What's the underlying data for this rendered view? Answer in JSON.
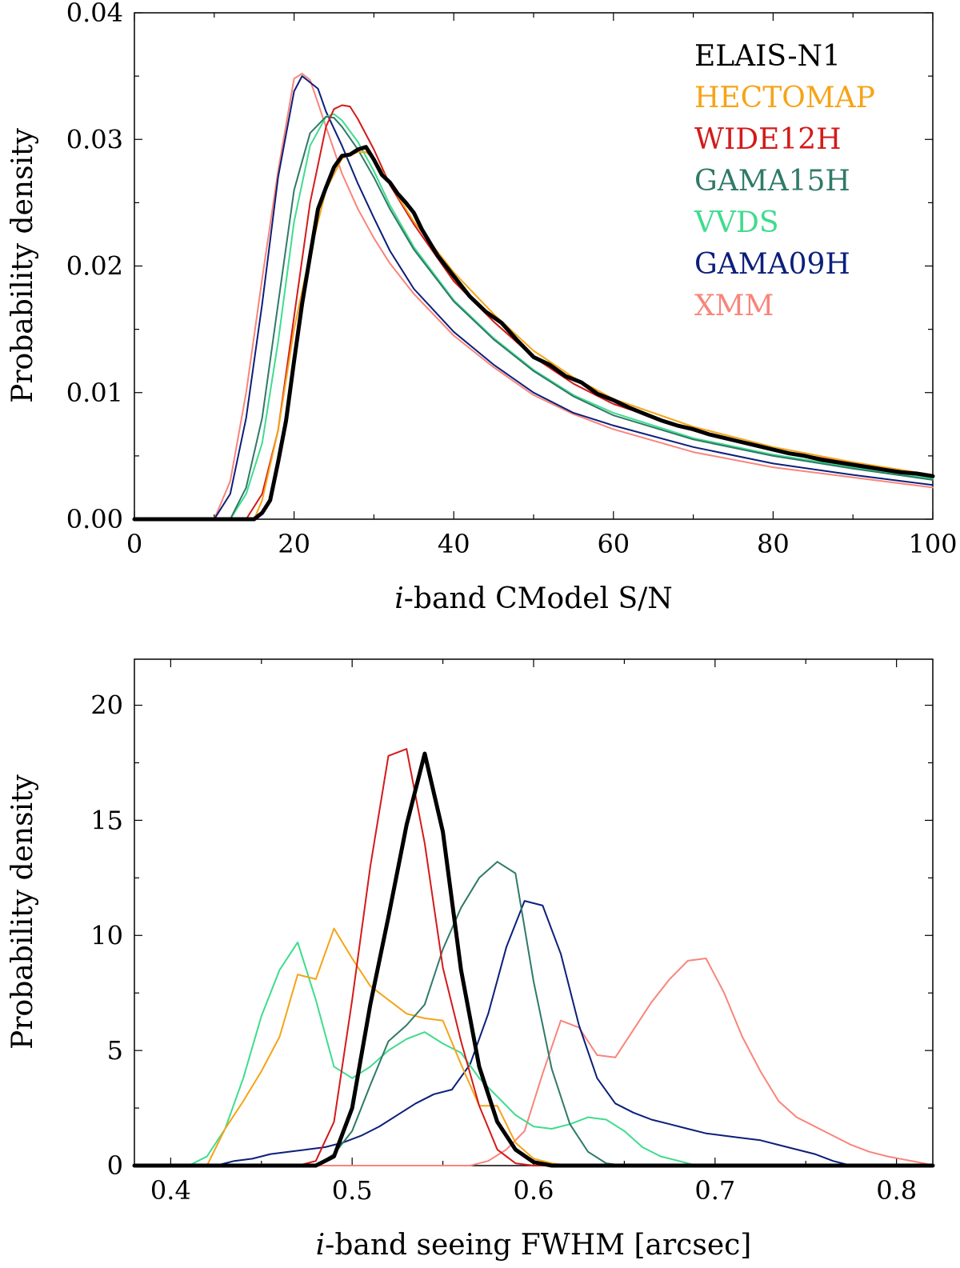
{
  "chart_data": [
    {
      "type": "line",
      "id": "top",
      "xlabel_prefix": "i",
      "xlabel_rest": "-band CModel S/N",
      "ylabel": "Probability density",
      "xlim": [
        0,
        100
      ],
      "ylim": [
        0,
        0.04
      ],
      "xticks": [
        0,
        20,
        40,
        60,
        80,
        100
      ],
      "xtick_labels": [
        "0",
        "20",
        "40",
        "60",
        "80",
        "100"
      ],
      "yticks": [
        0,
        0.01,
        0.02,
        0.03,
        0.04
      ],
      "ytick_labels": [
        "0.00",
        "0.01",
        "0.02",
        "0.03",
        "0.04"
      ],
      "legend": [
        {
          "name": "ELAIS-N1",
          "color": "#000000"
        },
        {
          "name": "HECTOMAP",
          "color": "#f5a418"
        },
        {
          "name": "WIDE12H",
          "color": "#d41a1a"
        },
        {
          "name": "GAMA15H",
          "color": "#2f7a68"
        },
        {
          "name": "VVDS",
          "color": "#3fdc8e"
        },
        {
          "name": "GAMA09H",
          "color": "#0c1f7a"
        },
        {
          "name": "XMM",
          "color": "#f8857b"
        }
      ],
      "series": [
        {
          "name": "XMM",
          "color": "#f8857b",
          "width": 2,
          "x": [
            0,
            10,
            12,
            14,
            16,
            18,
            20,
            21,
            22,
            24,
            26,
            28,
            30,
            32,
            35,
            40,
            45,
            50,
            55,
            60,
            70,
            80,
            90,
            100
          ],
          "y": [
            0,
            0,
            0.003,
            0.01,
            0.019,
            0.0275,
            0.0348,
            0.0352,
            0.0347,
            0.031,
            0.0273,
            0.0245,
            0.0222,
            0.0202,
            0.0178,
            0.0145,
            0.012,
            0.0098,
            0.0083,
            0.0071,
            0.0053,
            0.0041,
            0.0033,
            0.0025
          ]
        },
        {
          "name": "GAMA09H",
          "color": "#0c1f7a",
          "width": 2,
          "x": [
            0,
            10,
            12,
            14,
            16,
            18,
            20,
            21,
            22,
            23,
            24,
            26,
            28,
            30,
            32,
            35,
            40,
            45,
            50,
            55,
            60,
            70,
            80,
            90,
            100
          ],
          "y": [
            0,
            0,
            0.002,
            0.008,
            0.017,
            0.027,
            0.0338,
            0.035,
            0.0345,
            0.034,
            0.0322,
            0.0295,
            0.0265,
            0.0238,
            0.0212,
            0.0182,
            0.0148,
            0.0122,
            0.01,
            0.0084,
            0.0074,
            0.0057,
            0.0044,
            0.0035,
            0.0027
          ]
        },
        {
          "name": "VVDS",
          "color": "#3fdc8e",
          "width": 2,
          "x": [
            0,
            12,
            14,
            16,
            18,
            20,
            22,
            24,
            25,
            26,
            28,
            30,
            32,
            35,
            40,
            45,
            50,
            55,
            60,
            70,
            80,
            90,
            100
          ],
          "y": [
            0,
            0,
            0.002,
            0.006,
            0.014,
            0.0235,
            0.0295,
            0.0318,
            0.032,
            0.0315,
            0.0298,
            0.0275,
            0.0248,
            0.0215,
            0.0173,
            0.0143,
            0.0118,
            0.0098,
            0.0084,
            0.0064,
            0.0051,
            0.0041,
            0.0032
          ]
        },
        {
          "name": "GAMA15H",
          "color": "#2f7a68",
          "width": 2,
          "x": [
            0,
            12,
            14,
            16,
            18,
            20,
            22,
            24,
            25,
            26,
            28,
            30,
            32,
            35,
            40,
            45,
            50,
            55,
            60,
            70,
            80,
            90,
            100
          ],
          "y": [
            0,
            0,
            0.0025,
            0.008,
            0.017,
            0.026,
            0.0305,
            0.0318,
            0.0317,
            0.031,
            0.0292,
            0.027,
            0.0245,
            0.0213,
            0.0172,
            0.0142,
            0.0117,
            0.0097,
            0.0082,
            0.0063,
            0.005,
            0.004,
            0.0031
          ]
        },
        {
          "name": "WIDE12H",
          "color": "#d41a1a",
          "width": 2,
          "x": [
            0,
            14,
            16,
            18,
            20,
            22,
            24,
            25,
            26,
            27,
            28,
            30,
            32,
            35,
            40,
            45,
            50,
            55,
            60,
            70,
            80,
            90,
            100
          ],
          "y": [
            0,
            0,
            0.002,
            0.007,
            0.016,
            0.025,
            0.031,
            0.0324,
            0.0327,
            0.0326,
            0.0316,
            0.0292,
            0.0264,
            0.0233,
            0.0188,
            0.0156,
            0.0128,
            0.0107,
            0.0091,
            0.007,
            0.0055,
            0.0044,
            0.0034
          ]
        },
        {
          "name": "HECTOMAP",
          "color": "#f5a418",
          "width": 2,
          "x": [
            0,
            15,
            16,
            18,
            20,
            22,
            24,
            26,
            28,
            29,
            30,
            32,
            35,
            40,
            45,
            50,
            55,
            60,
            70,
            80,
            90,
            100
          ],
          "y": [
            0,
            0,
            0.0015,
            0.007,
            0.015,
            0.021,
            0.026,
            0.0285,
            0.029,
            0.029,
            0.0285,
            0.0265,
            0.0235,
            0.0195,
            0.0162,
            0.0133,
            0.0112,
            0.0095,
            0.0073,
            0.0057,
            0.0045,
            0.0035
          ]
        },
        {
          "name": "ELAIS-N1",
          "color": "#000000",
          "width": 5,
          "x": [
            0,
            15,
            16,
            17,
            18,
            19,
            20,
            21,
            22,
            23,
            24,
            25,
            26,
            27,
            28,
            29,
            30,
            31,
            32,
            33,
            34,
            35,
            36,
            38,
            40,
            42,
            44,
            46,
            48,
            50,
            52,
            54,
            56,
            58,
            60,
            62,
            64,
            66,
            68,
            70,
            72,
            74,
            76,
            78,
            80,
            82,
            84,
            86,
            88,
            90,
            92,
            94,
            96,
            98,
            100
          ],
          "y": [
            0,
            0,
            0.0005,
            0.0015,
            0.0045,
            0.0078,
            0.0125,
            0.017,
            0.0208,
            0.0245,
            0.0262,
            0.0278,
            0.0287,
            0.0288,
            0.0292,
            0.0294,
            0.0284,
            0.0272,
            0.0266,
            0.0257,
            0.025,
            0.0242,
            0.0229,
            0.0208,
            0.0192,
            0.0176,
            0.0164,
            0.0155,
            0.0141,
            0.0128,
            0.0122,
            0.0113,
            0.0108,
            0.0099,
            0.0094,
            0.0088,
            0.0083,
            0.0078,
            0.0074,
            0.0071,
            0.0067,
            0.0064,
            0.0061,
            0.0058,
            0.0055,
            0.0052,
            0.005,
            0.0047,
            0.0045,
            0.0043,
            0.0041,
            0.0039,
            0.0037,
            0.0036,
            0.0034
          ]
        }
      ]
    },
    {
      "type": "line",
      "id": "bottom",
      "xlabel_prefix": "i",
      "xlabel_rest": "-band seeing FWHM [arcsec]",
      "ylabel": "Probability density",
      "xlim": [
        0.38,
        0.82
      ],
      "ylim": [
        0,
        22
      ],
      "xticks": [
        0.4,
        0.5,
        0.6,
        0.7,
        0.8
      ],
      "xtick_labels": [
        "0.4",
        "0.5",
        "0.6",
        "0.7",
        "0.8"
      ],
      "yticks": [
        0,
        5,
        10,
        15,
        20
      ],
      "ytick_labels": [
        "0",
        "5",
        "10",
        "15",
        "20"
      ],
      "series": [
        {
          "name": "XMM",
          "color": "#f8857b",
          "width": 2,
          "x": [
            0.38,
            0.55,
            0.565,
            0.575,
            0.585,
            0.595,
            0.605,
            0.615,
            0.625,
            0.635,
            0.645,
            0.655,
            0.665,
            0.675,
            0.685,
            0.695,
            0.705,
            0.715,
            0.725,
            0.735,
            0.745,
            0.755,
            0.765,
            0.775,
            0.785,
            0.795,
            0.805,
            0.815,
            0.82
          ],
          "y": [
            0,
            0,
            0,
            0.2,
            0.7,
            1.5,
            4.0,
            6.3,
            6.0,
            4.8,
            4.7,
            5.9,
            7.1,
            8.1,
            8.9,
            9.0,
            7.5,
            5.6,
            4.1,
            2.8,
            2.1,
            1.7,
            1.3,
            0.9,
            0.6,
            0.4,
            0.25,
            0.1,
            0
          ]
        },
        {
          "name": "GAMA09H",
          "color": "#0c1f7a",
          "width": 2,
          "x": [
            0.38,
            0.425,
            0.435,
            0.445,
            0.455,
            0.465,
            0.475,
            0.485,
            0.495,
            0.505,
            0.515,
            0.525,
            0.535,
            0.545,
            0.555,
            0.565,
            0.575,
            0.585,
            0.595,
            0.605,
            0.615,
            0.625,
            0.635,
            0.645,
            0.655,
            0.665,
            0.675,
            0.685,
            0.695,
            0.705,
            0.715,
            0.725,
            0.735,
            0.745,
            0.755,
            0.765,
            0.775,
            0.82
          ],
          "y": [
            0,
            0,
            0.2,
            0.3,
            0.5,
            0.6,
            0.7,
            0.8,
            1.0,
            1.3,
            1.7,
            2.2,
            2.7,
            3.1,
            3.3,
            4.4,
            6.6,
            9.5,
            11.5,
            11.3,
            9.2,
            6.1,
            3.8,
            2.7,
            2.3,
            2.0,
            1.8,
            1.6,
            1.4,
            1.3,
            1.2,
            1.1,
            0.9,
            0.7,
            0.5,
            0.2,
            0,
            0
          ]
        },
        {
          "name": "VVDS",
          "color": "#3fdc8e",
          "width": 2,
          "x": [
            0.38,
            0.41,
            0.42,
            0.43,
            0.44,
            0.45,
            0.46,
            0.47,
            0.48,
            0.49,
            0.5,
            0.51,
            0.52,
            0.53,
            0.54,
            0.55,
            0.56,
            0.57,
            0.58,
            0.59,
            0.6,
            0.61,
            0.62,
            0.63,
            0.64,
            0.65,
            0.66,
            0.67,
            0.68,
            0.69,
            0.7,
            0.82
          ],
          "y": [
            0,
            0,
            0.4,
            1.6,
            3.8,
            6.5,
            8.5,
            9.7,
            7.2,
            4.3,
            3.8,
            4.3,
            5.0,
            5.5,
            5.8,
            5.3,
            4.9,
            3.8,
            3.0,
            2.2,
            1.7,
            1.6,
            1.8,
            2.1,
            2.0,
            1.5,
            0.8,
            0.4,
            0.2,
            0,
            0,
            0
          ]
        },
        {
          "name": "HECTOMAP",
          "color": "#f5a418",
          "width": 2,
          "x": [
            0.38,
            0.42,
            0.43,
            0.44,
            0.45,
            0.46,
            0.47,
            0.48,
            0.49,
            0.5,
            0.51,
            0.52,
            0.53,
            0.54,
            0.55,
            0.56,
            0.57,
            0.58,
            0.59,
            0.6,
            0.61,
            0.62,
            0.82
          ],
          "y": [
            0,
            0,
            1.6,
            2.8,
            4.1,
            5.6,
            8.3,
            8.1,
            10.3,
            9.0,
            7.8,
            7.2,
            6.6,
            6.4,
            6.3,
            4.4,
            2.6,
            2.6,
            1.0,
            0.3,
            0.1,
            0,
            0
          ]
        },
        {
          "name": "GAMA15H",
          "color": "#2f7a68",
          "width": 2,
          "x": [
            0.38,
            0.48,
            0.49,
            0.5,
            0.51,
            0.52,
            0.53,
            0.54,
            0.55,
            0.56,
            0.57,
            0.58,
            0.59,
            0.6,
            0.61,
            0.62,
            0.63,
            0.64,
            0.65,
            0.82
          ],
          "y": [
            0,
            0,
            0.5,
            1.5,
            3.5,
            5.4,
            6.1,
            7.0,
            9.4,
            11.2,
            12.5,
            13.2,
            12.7,
            8.0,
            4.2,
            1.8,
            0.6,
            0.1,
            0,
            0
          ]
        },
        {
          "name": "WIDE12H",
          "color": "#d41a1a",
          "width": 2,
          "x": [
            0.38,
            0.47,
            0.48,
            0.49,
            0.5,
            0.51,
            0.52,
            0.53,
            0.54,
            0.55,
            0.56,
            0.57,
            0.58,
            0.59,
            0.6,
            0.61,
            0.82
          ],
          "y": [
            0,
            0,
            0.2,
            1.9,
            7.2,
            13.0,
            17.8,
            18.1,
            14.0,
            8.6,
            5.4,
            2.6,
            0.7,
            0.1,
            0,
            0,
            0
          ]
        },
        {
          "name": "ELAIS-N1",
          "color": "#000000",
          "width": 5,
          "x": [
            0.38,
            0.48,
            0.49,
            0.5,
            0.51,
            0.52,
            0.53,
            0.54,
            0.55,
            0.56,
            0.57,
            0.58,
            0.59,
            0.6,
            0.61,
            0.62,
            0.63,
            0.82
          ],
          "y": [
            0,
            0,
            0.4,
            2.5,
            7.0,
            10.8,
            14.8,
            17.9,
            14.5,
            8.5,
            4.3,
            1.9,
            0.7,
            0.15,
            0,
            0,
            0,
            0
          ]
        }
      ]
    }
  ]
}
